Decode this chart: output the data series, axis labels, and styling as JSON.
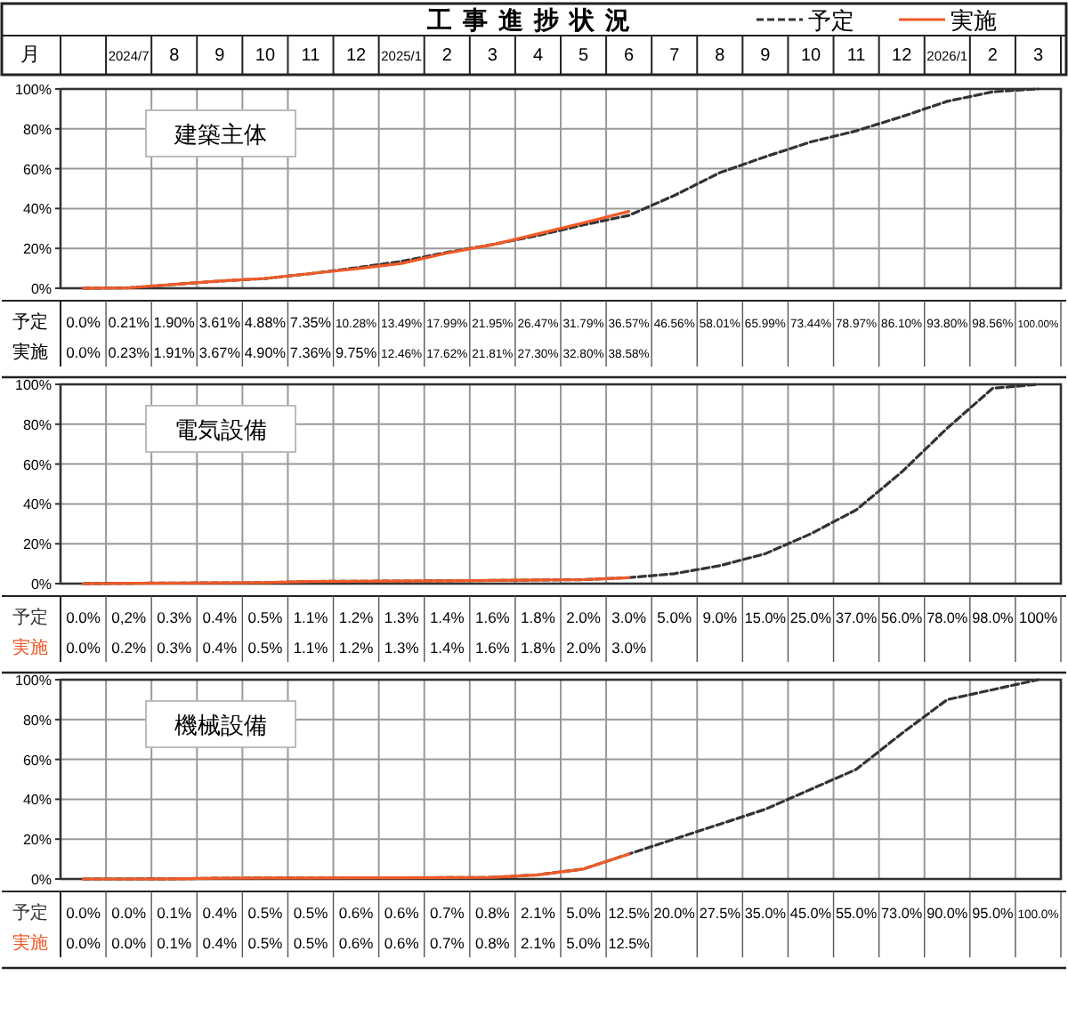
{
  "chart_data": [
    {
      "type": "line",
      "title": "工事進捗状況",
      "xlabel": "月",
      "annotations": [
        "建築主体"
      ],
      "legend": "top right",
      "grid": true,
      "categories": [
        null,
        "2024/7",
        "8",
        "9",
        "10",
        "11",
        "12",
        "2025/1",
        "2",
        "3",
        "4",
        "5",
        "6",
        "7",
        "8",
        "9",
        "10",
        "11",
        "12",
        "2026/1",
        "2",
        "3"
      ],
      "ylim": [
        0,
        100
      ],
      "yticks": [
        {
          "value": 0,
          "label": "0%"
        },
        {
          "value": 20,
          "label": "20%"
        },
        {
          "value": 40,
          "label": "40%"
        },
        {
          "value": 60,
          "label": "60%"
        },
        {
          "value": 80,
          "label": "80%"
        },
        {
          "value": 100,
          "label": "100%"
        }
      ],
      "series": [
        {
          "name": "予定",
          "color": "#333333",
          "line_style": "dashed",
          "values": [
            0.0,
            0.21,
            1.9,
            3.61,
            4.88,
            7.35,
            10.28,
            13.49,
            17.99,
            21.95,
            26.47,
            31.79,
            36.57,
            46.56,
            58.01,
            65.99,
            73.44,
            78.97,
            86.1,
            93.8,
            98.56,
            100.0
          ],
          "value_labels": [
            "0.0%",
            "0.21%",
            "1.90%",
            "3.61%",
            "4.88%",
            "7.35%",
            "10.28%",
            "13.49%",
            "17.99%",
            "21.95%",
            "26.47%",
            "31.79%",
            "36.57%",
            "46.56%",
            "58.01%",
            "65.99%",
            "73.44%",
            "78.97%",
            "86.10%",
            "93.80%",
            "98.56%",
            "100.00%"
          ]
        },
        {
          "name": "実施",
          "color": "#f05a28",
          "line_style": "solid",
          "values": [
            0.0,
            0.23,
            1.91,
            3.67,
            4.9,
            7.36,
            9.75,
            12.46,
            17.62,
            21.81,
            27.3,
            32.8,
            38.58,
            null,
            null,
            null,
            null,
            null,
            null,
            null,
            null,
            null
          ],
          "value_labels": [
            "0.0%",
            "0.23%",
            "1.91%",
            "3.67%",
            "4.90%",
            "7.36%",
            "9.75%",
            "12.46%",
            "17.62%",
            "21.81%",
            "27.30%",
            "32.80%",
            "38.58%",
            null,
            null,
            null,
            null,
            null,
            null,
            null,
            null,
            null
          ]
        }
      ]
    },
    {
      "type": "line",
      "annotations": [
        "電気設備"
      ],
      "legend": false,
      "grid": true,
      "tick_labels": "y",
      "categories": [
        null,
        "2024/7",
        "8",
        "9",
        "10",
        "11",
        "12",
        "2025/1",
        "2",
        "3",
        "4",
        "5",
        "6",
        "7",
        "8",
        "9",
        "10",
        "11",
        "12",
        "2026/1",
        "2",
        "3"
      ],
      "ylim": [
        0,
        100
      ],
      "yticks": [
        {
          "value": 0,
          "label": "0%"
        },
        {
          "value": 20,
          "label": "20%"
        },
        {
          "value": 40,
          "label": "40%"
        },
        {
          "value": 60,
          "label": "60%"
        },
        {
          "value": 80,
          "label": "80%"
        },
        {
          "value": 100,
          "label": "100%"
        }
      ],
      "series": [
        {
          "name": "予定",
          "color": "#333333",
          "line_style": "dashed",
          "values": [
            0.0,
            0.2,
            0.3,
            0.4,
            0.5,
            1.1,
            1.2,
            1.3,
            1.4,
            1.6,
            1.8,
            2.0,
            3.0,
            5.0,
            9.0,
            15.0,
            25.0,
            37.0,
            56.0,
            78.0,
            98.0,
            100
          ],
          "value_labels": [
            "0.0%",
            "0,2%",
            "0.3%",
            "0.4%",
            "0.5%",
            "1.1%",
            "1.2%",
            "1.3%",
            "1.4%",
            "1.6%",
            "1.8%",
            "2.0%",
            "3.0%",
            "5.0%",
            "9.0%",
            "15.0%",
            "25.0%",
            "37.0%",
            "56.0%",
            "78.0%",
            "98.0%",
            "100%"
          ]
        },
        {
          "name": "実施",
          "color": "#f05a28",
          "line_style": "solid",
          "values": [
            0.0,
            0.2,
            0.3,
            0.4,
            0.5,
            1.1,
            1.2,
            1.3,
            1.4,
            1.6,
            1.8,
            2.0,
            3.0,
            null,
            null,
            null,
            null,
            null,
            null,
            null,
            null,
            null
          ],
          "value_labels": [
            "0.0%",
            "0.2%",
            "0.3%",
            "0.4%",
            "0.5%",
            "1.1%",
            "1.2%",
            "1.3%",
            "1.4%",
            "1.6%",
            "1.8%",
            "2.0%",
            "3.0%",
            null,
            null,
            null,
            null,
            null,
            null,
            null,
            null,
            null
          ]
        }
      ]
    },
    {
      "type": "line",
      "annotations": [
        "機械設備"
      ],
      "legend": false,
      "grid": true,
      "tick_labels": "y",
      "categories": [
        null,
        "2024/7",
        "8",
        "9",
        "10",
        "11",
        "12",
        "2025/1",
        "2",
        "3",
        "4",
        "5",
        "6",
        "7",
        "8",
        "9",
        "10",
        "11",
        "12",
        "2026/1",
        "2",
        "3"
      ],
      "ylim": [
        0,
        100
      ],
      "yticks": [
        {
          "value": 0,
          "label": "0%"
        },
        {
          "value": 20,
          "label": "20%"
        },
        {
          "value": 40,
          "label": "40%"
        },
        {
          "value": 60,
          "label": "60%"
        },
        {
          "value": 80,
          "label": "80%"
        },
        {
          "value": 100,
          "label": "100%"
        }
      ],
      "series": [
        {
          "name": "予定",
          "color": "#333333",
          "line_style": "dashed",
          "values": [
            0.0,
            0.0,
            0.1,
            0.4,
            0.5,
            0.5,
            0.6,
            0.6,
            0.7,
            0.8,
            2.1,
            5.0,
            12.5,
            20.0,
            27.5,
            35.0,
            45.0,
            55.0,
            73.0,
            90.0,
            95.0,
            100.0
          ],
          "value_labels": [
            "0.0%",
            "0.0%",
            "0.1%",
            "0.4%",
            "0.5%",
            "0.5%",
            "0.6%",
            "0.6%",
            "0.7%",
            "0.8%",
            "2.1%",
            "5.0%",
            "12.5%",
            "20.0%",
            "27.5%",
            "35.0%",
            "45.0%",
            "55.0%",
            "73.0%",
            "90.0%",
            "95.0%",
            "100.0%"
          ]
        },
        {
          "name": "実施",
          "color": "#f05a28",
          "line_style": "solid",
          "values": [
            0.0,
            0.0,
            0.1,
            0.4,
            0.5,
            0.5,
            0.6,
            0.6,
            0.7,
            0.8,
            2.1,
            5.0,
            12.5,
            null,
            null,
            null,
            null,
            null,
            null,
            null,
            null,
            null
          ],
          "value_labels": [
            "0.0%",
            "0.0%",
            "0.1%",
            "0.4%",
            "0.5%",
            "0.5%",
            "0.6%",
            "0.6%",
            "0.7%",
            "0.8%",
            "2.1%",
            "5.0%",
            "12.5%",
            null,
            null,
            null,
            null,
            null,
            null,
            null,
            null,
            null
          ]
        }
      ]
    }
  ]
}
